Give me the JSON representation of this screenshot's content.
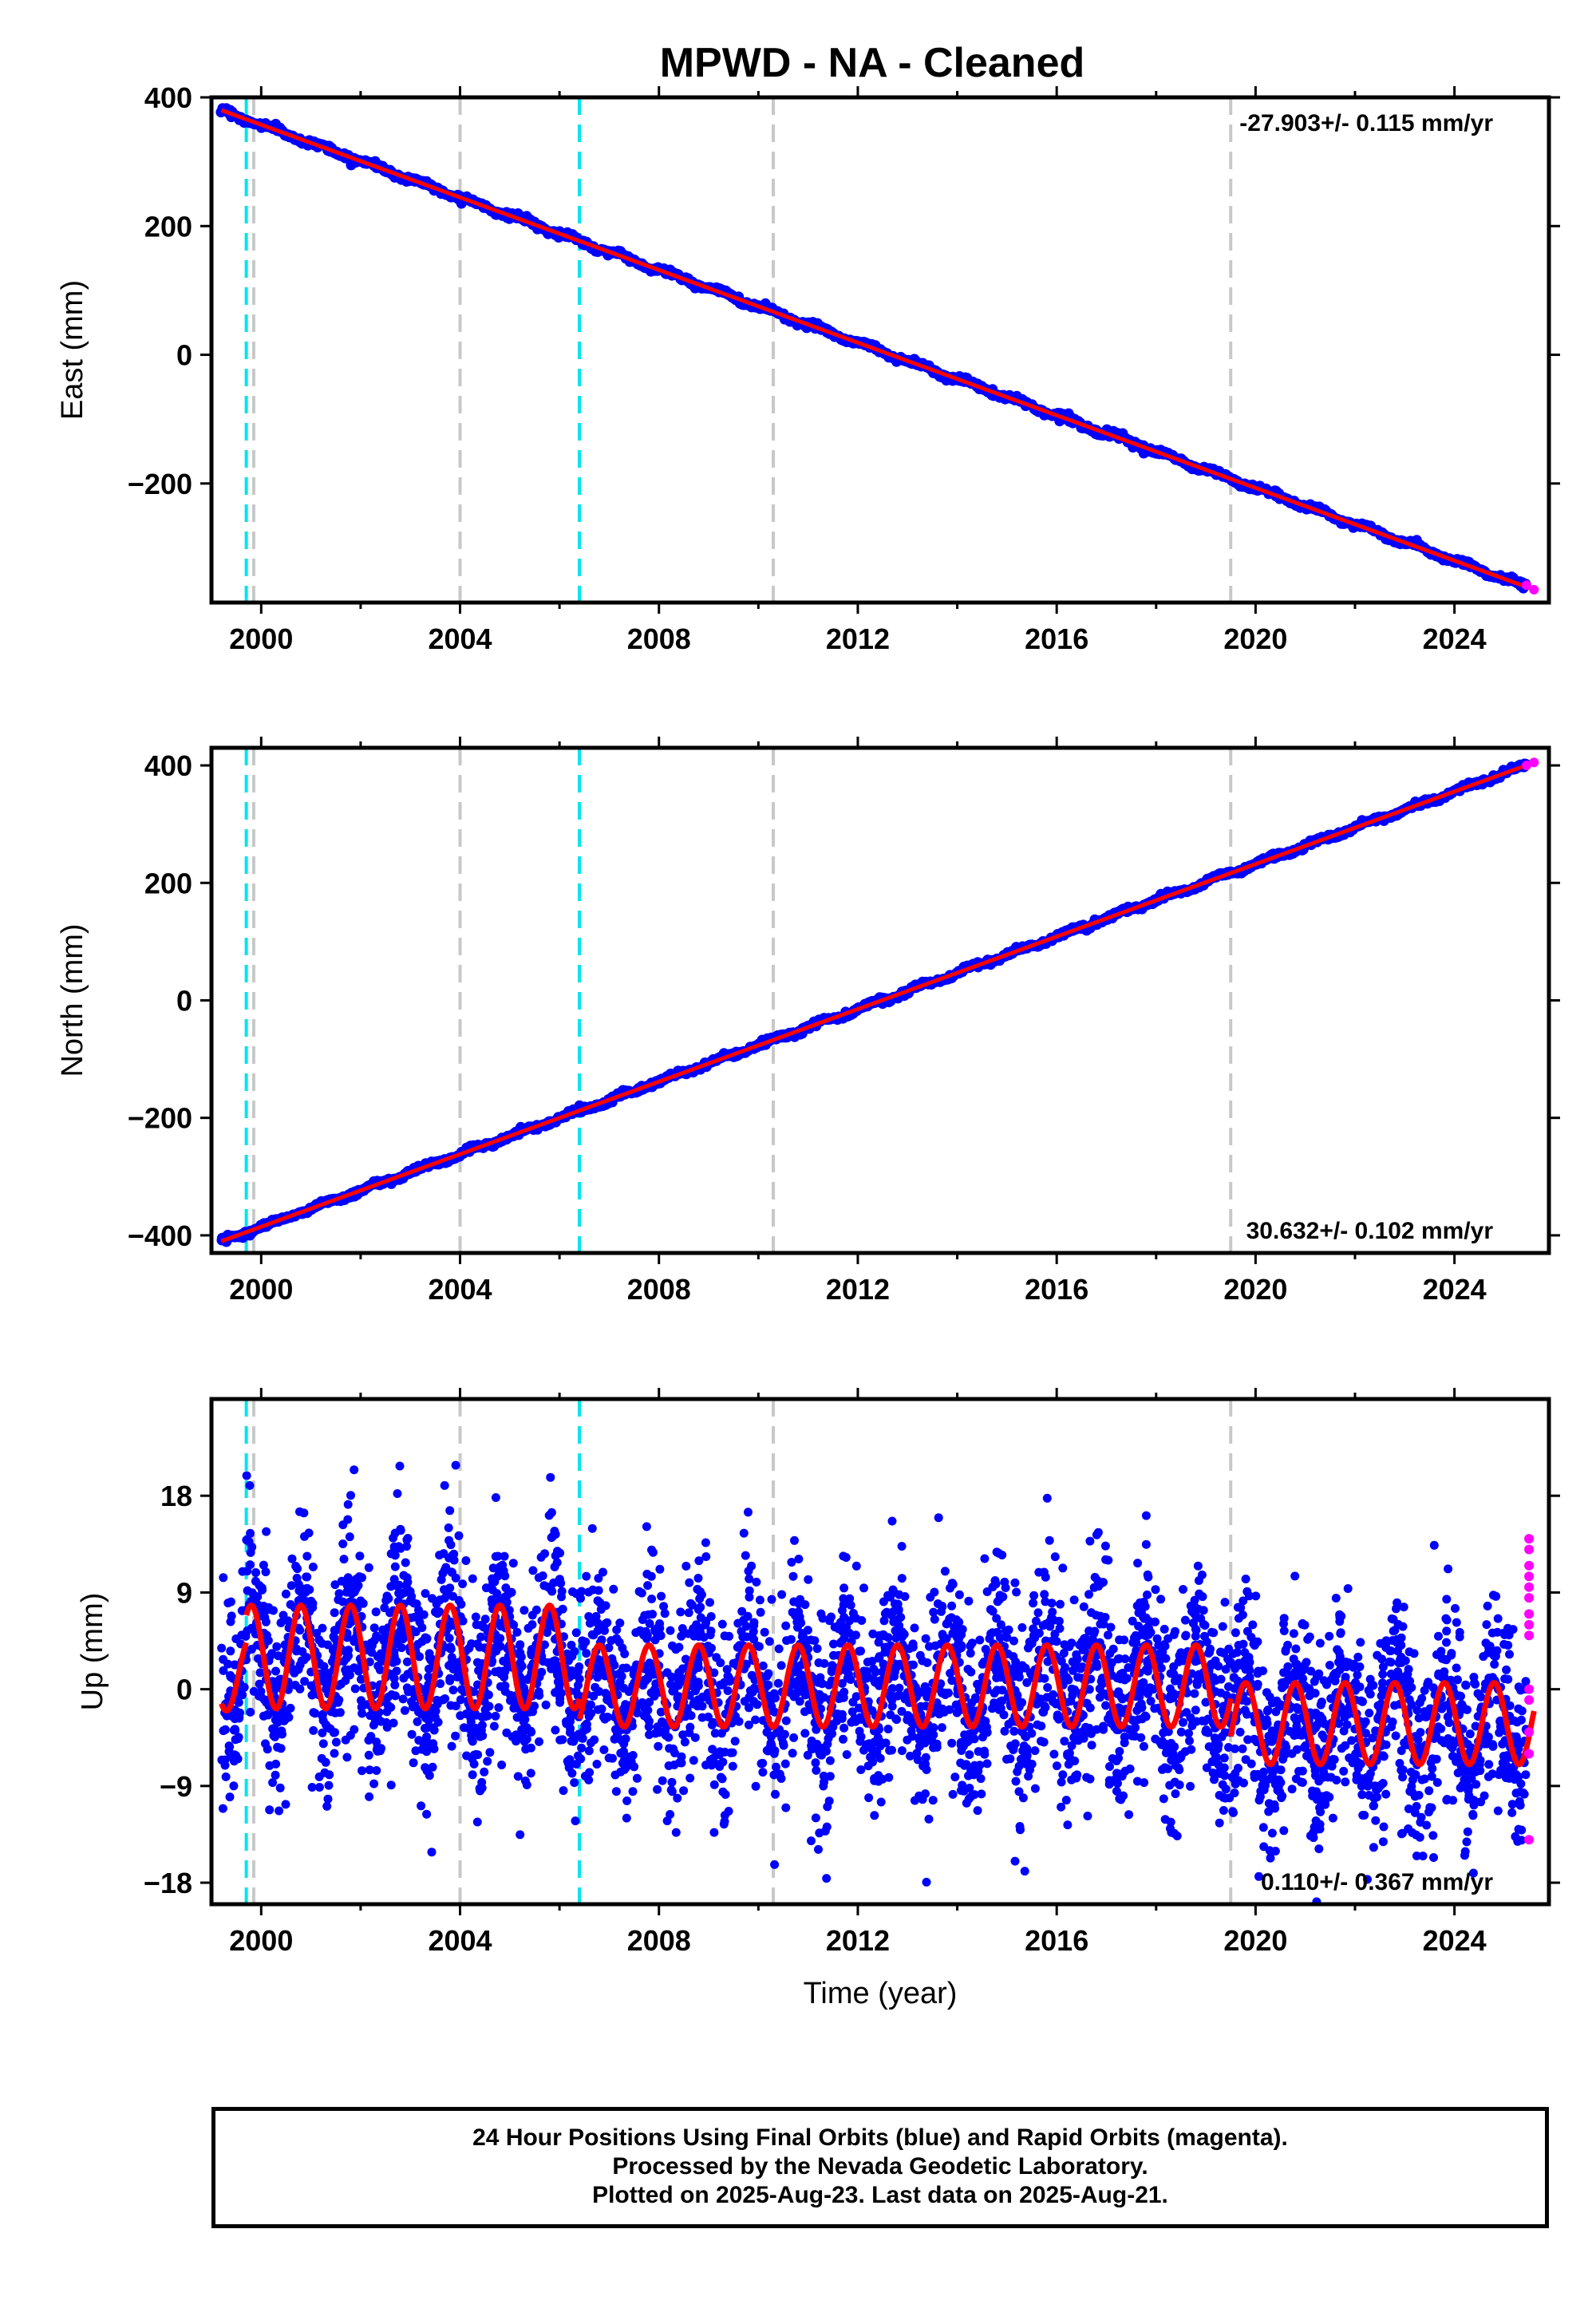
{
  "title": "MPWD  - NA - Cleaned",
  "footer": {
    "line1": "24 Hour Positions Using Final Orbits (blue) and Rapid Orbits (magenta).",
    "line2": "Processed by the Nevada Geodetic Laboratory.",
    "line3": "Plotted on 2025-Aug-23. Last data on 2025-Aug-21."
  },
  "colors": {
    "final_orbits": "#0000ff",
    "rapid_orbits": "#ff00ff",
    "model_fit": "#ff0000",
    "antenna_change_line": "#00e5ee",
    "equipment_change_line": "#c8c8c8"
  },
  "chart_data": [
    {
      "type": "scatter",
      "component": "East",
      "ylabel": "East (mm)",
      "xlabel": "",
      "xlim": [
        1999.0,
        2025.9
      ],
      "ylim": [
        -385,
        400
      ],
      "xticks": [
        2000,
        2004,
        2008,
        2012,
        2016,
        2020,
        2024
      ],
      "xtick_labels": [
        "2000",
        "2004",
        "2008",
        "2012",
        "2016",
        "2020",
        "2024"
      ],
      "yticks": [
        -200,
        0,
        200,
        400
      ],
      "ytick_labels": [
        "−200",
        "0",
        "200",
        "400"
      ],
      "velocity_label": "-27.903+/- 0.115 mm/yr",
      "velocity_position": "top-right",
      "trend": {
        "x": [
          1999.2,
          2025.6
        ],
        "y": [
          380,
          -365
        ]
      },
      "rapid_points": {
        "x": [
          2025.45,
          2025.6
        ],
        "y": [
          -358,
          -365
        ]
      },
      "dashed_lines": [
        {
          "x": 1999.7,
          "kind": "antenna"
        },
        {
          "x": 2006.4,
          "kind": "antenna"
        },
        {
          "x": 1999.85,
          "kind": "equipment"
        },
        {
          "x": 2004.0,
          "kind": "equipment"
        },
        {
          "x": 2010.3,
          "kind": "equipment"
        },
        {
          "x": 2019.5,
          "kind": "equipment"
        }
      ]
    },
    {
      "type": "scatter",
      "component": "North",
      "ylabel": "North (mm)",
      "xlabel": "",
      "xlim": [
        1999.0,
        2025.9
      ],
      "ylim": [
        -430,
        430
      ],
      "xticks": [
        2000,
        2004,
        2008,
        2012,
        2016,
        2020,
        2024
      ],
      "xtick_labels": [
        "2000",
        "2004",
        "2008",
        "2012",
        "2016",
        "2020",
        "2024"
      ],
      "yticks": [
        -400,
        -200,
        0,
        200,
        400
      ],
      "ytick_labels": [
        "−400",
        "−200",
        "0",
        "200",
        "400"
      ],
      "velocity_label": "30.632+/- 0.102 mm/yr",
      "velocity_position": "bottom-right",
      "trend": {
        "x": [
          1999.2,
          2025.6
        ],
        "y": [
          -410,
          405
        ]
      },
      "rapid_points": {
        "x": [
          2025.45,
          2025.6
        ],
        "y": [
          400,
          405
        ]
      },
      "dashed_lines": [
        {
          "x": 1999.7,
          "kind": "antenna"
        },
        {
          "x": 2006.4,
          "kind": "antenna"
        },
        {
          "x": 1999.85,
          "kind": "equipment"
        },
        {
          "x": 2004.0,
          "kind": "equipment"
        },
        {
          "x": 2010.3,
          "kind": "equipment"
        },
        {
          "x": 2019.5,
          "kind": "equipment"
        }
      ]
    },
    {
      "type": "scatter",
      "component": "Up",
      "ylabel": "Up (mm)",
      "xlabel": "Time (year)",
      "xlim": [
        1999.0,
        2025.9
      ],
      "ylim": [
        -20,
        27
      ],
      "xticks": [
        2000,
        2004,
        2008,
        2012,
        2016,
        2020,
        2024
      ],
      "xtick_labels": [
        "2000",
        "2004",
        "2008",
        "2012",
        "2016",
        "2020",
        "2024"
      ],
      "yticks": [
        -18,
        -9,
        0,
        9,
        18
      ],
      "ytick_labels": [
        "−18",
        "−9",
        "0",
        "9",
        "18"
      ],
      "velocity_label": "0.110+/- 0.367 mm/yr",
      "velocity_position": "bottom-right",
      "seasonal_fit": {
        "segments": [
          {
            "x_range": [
              1999.2,
              1999.7
            ],
            "offset": 1.5,
            "amp": 3.5
          },
          {
            "x_range": [
              1999.7,
              2006.4
            ],
            "offset": 3.0,
            "amp": 4.8
          },
          {
            "x_range": [
              2006.4,
              2019.5
            ],
            "offset": 0.3,
            "amp": 3.8
          },
          {
            "x_range": [
              2019.5,
              2025.6
            ],
            "offset": -3.2,
            "amp": 3.8
          }
        ]
      },
      "rapid_points": {
        "x": [
          2025.5,
          2025.5,
          2025.5,
          2025.5,
          2025.5,
          2025.5,
          2025.5,
          2025.5,
          2025.5,
          2025.5,
          2025.5,
          2025.5,
          2025.5,
          2025.5
        ],
        "y": [
          14,
          13,
          11.5,
          10.5,
          9.5,
          8.5,
          7,
          6,
          5,
          0,
          -1,
          -4,
          -6,
          -14
        ]
      },
      "scatter_sd_mm": 4.5,
      "dashed_lines": [
        {
          "x": 1999.7,
          "kind": "antenna"
        },
        {
          "x": 2006.4,
          "kind": "antenna"
        },
        {
          "x": 1999.85,
          "kind": "equipment"
        },
        {
          "x": 2004.0,
          "kind": "equipment"
        },
        {
          "x": 2010.3,
          "kind": "equipment"
        },
        {
          "x": 2019.5,
          "kind": "equipment"
        }
      ]
    }
  ]
}
